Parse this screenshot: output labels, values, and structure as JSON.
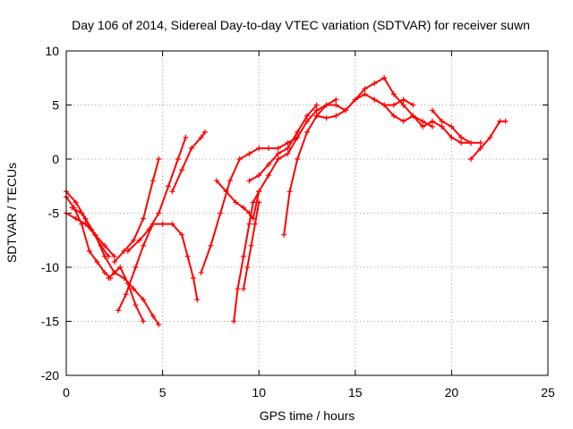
{
  "chart_data": {
    "type": "scatter",
    "title": "Day 106 of 2014, Sidereal Day-to-day VTEC variation (SDTVAR) for receiver suwn",
    "xlabel": "GPS time / hours",
    "ylabel": "SDTVAR / TECUs",
    "xlim": [
      0,
      25
    ],
    "ylim": [
      -20,
      10
    ],
    "xticks": [
      "0",
      "5",
      "10",
      "15",
      "20",
      "25"
    ],
    "yticks": [
      "-20",
      "-15",
      "-10",
      "-5",
      "0",
      "5",
      "10"
    ],
    "grid": true,
    "marker": "+",
    "color": "#ff0000",
    "series": [
      {
        "x": [
          0.0,
          0.5,
          1.0,
          1.5,
          2.0,
          2.5,
          3.0,
          3.5,
          4.0,
          4.5,
          4.8
        ],
        "y": [
          -3.0,
          -4.0,
          -5.5,
          -7.0,
          -9.0,
          -10.5,
          -11.0,
          -12.0,
          -13.0,
          -14.5,
          -15.3
        ]
      },
      {
        "x": [
          0.0,
          0.4,
          0.8,
          1.2,
          1.6,
          2.0,
          2.3
        ],
        "y": [
          -3.5,
          -4.5,
          -6.0,
          -8.5,
          -9.5,
          -10.5,
          -11.0
        ]
      },
      {
        "x": [
          0.0,
          0.5,
          1.0,
          1.5,
          2.0,
          2.5
        ],
        "y": [
          -5.0,
          -5.5,
          -6.0,
          -7.0,
          -8.0,
          -9.0
        ]
      },
      {
        "x": [
          0.3,
          0.8,
          1.3,
          1.8,
          2.2
        ],
        "y": [
          -4.5,
          -5.0,
          -6.5,
          -8.0,
          -9.0
        ]
      },
      {
        "x": [
          2.2,
          2.8,
          3.2,
          3.6,
          4.0
        ],
        "y": [
          -11.0,
          -10.0,
          -11.5,
          -13.5,
          -15.0
        ]
      },
      {
        "x": [
          2.7,
          3.1,
          3.6,
          4.0,
          4.5,
          5.0
        ],
        "y": [
          -14.0,
          -12.5,
          -10.0,
          -8.0,
          -6.0,
          -6.0
        ]
      },
      {
        "x": [
          2.5,
          3.0,
          3.5,
          4.0,
          4.5,
          4.8
        ],
        "y": [
          -9.5,
          -8.5,
          -7.5,
          -5.5,
          -2.0,
          0.0
        ]
      },
      {
        "x": [
          3.2,
          3.8,
          4.3,
          4.8,
          5.3,
          5.8,
          6.2
        ],
        "y": [
          -8.5,
          -7.5,
          -6.5,
          -5.0,
          -2.5,
          0.0,
          2.0
        ]
      },
      {
        "x": [
          5.0,
          5.5,
          6.0,
          6.3,
          6.6,
          6.8
        ],
        "y": [
          -6.0,
          -6.0,
          -7.0,
          -9.0,
          -11.0,
          -13.0
        ]
      },
      {
        "x": [
          5.5,
          6.0,
          6.5,
          7.0,
          7.2
        ],
        "y": [
          -3.0,
          -1.0,
          1.0,
          2.0,
          2.5
        ]
      },
      {
        "x": [
          7.0,
          7.5,
          8.0,
          8.5,
          9.0,
          9.5,
          10.0,
          10.5,
          11.0,
          11.5,
          12.0
        ],
        "y": [
          -10.5,
          -8.0,
          -5.0,
          -2.0,
          0.0,
          0.5,
          1.0,
          1.0,
          1.0,
          1.5,
          2.0
        ]
      },
      {
        "x": [
          7.8,
          8.3,
          8.8,
          9.2,
          9.5,
          9.7,
          10.0
        ],
        "y": [
          -2.0,
          -3.0,
          -4.0,
          -4.5,
          -5.0,
          -5.5,
          -3.0
        ]
      },
      {
        "x": [
          8.7,
          8.9,
          9.2,
          9.5,
          9.7,
          10.0,
          10.5,
          11.0,
          11.5,
          12.0
        ],
        "y": [
          -15.0,
          -12.0,
          -9.0,
          -6.0,
          -4.0,
          -3.0,
          -1.5,
          0.0,
          0.5,
          2.0
        ]
      },
      {
        "x": [
          9.2,
          9.4,
          9.6,
          9.8,
          10.0
        ],
        "y": [
          -12.0,
          -10.0,
          -8.0,
          -6.0,
          -4.0
        ]
      },
      {
        "x": [
          9.5,
          10.0,
          10.5,
          11.0,
          11.5,
          12.0,
          12.5,
          13.0
        ],
        "y": [
          -2.0,
          -1.5,
          -0.5,
          0.5,
          1.0,
          2.5,
          4.0,
          5.0
        ]
      },
      {
        "x": [
          11.3,
          11.6,
          12.0,
          12.5,
          13.0,
          13.5,
          14.0
        ],
        "y": [
          -7.0,
          -3.0,
          0.0,
          2.5,
          4.0,
          5.0,
          5.5
        ]
      },
      {
        "x": [
          12.0,
          12.5,
          13.0,
          13.5,
          14.0,
          14.5,
          15.0,
          15.5,
          16.0,
          16.5,
          17.0,
          17.5,
          18.0
        ],
        "y": [
          2.0,
          3.5,
          4.5,
          5.0,
          5.0,
          4.5,
          5.5,
          6.0,
          5.5,
          5.0,
          5.0,
          5.5,
          5.0
        ]
      },
      {
        "x": [
          13.0,
          13.5,
          14.0,
          14.5,
          15.0,
          15.5,
          16.0,
          16.5
        ],
        "y": [
          4.0,
          3.8,
          4.0,
          4.5,
          5.5,
          6.5,
          7.0,
          7.5
        ]
      },
      {
        "x": [
          16.5,
          17.0,
          17.5,
          18.0,
          18.5,
          19.0
        ],
        "y": [
          7.5,
          6.0,
          5.0,
          4.0,
          3.5,
          3.0
        ]
      },
      {
        "x": [
          16.0,
          16.5,
          17.0,
          17.5,
          18.0,
          18.5,
          19.0,
          19.5,
          20.0,
          20.5,
          21.0,
          21.5
        ],
        "y": [
          5.5,
          5.0,
          4.0,
          3.5,
          4.0,
          3.0,
          3.5,
          3.0,
          2.0,
          1.5,
          1.5,
          1.5
        ]
      },
      {
        "x": [
          19.0,
          19.5,
          20.0,
          20.5,
          21.0
        ],
        "y": [
          4.5,
          3.5,
          3.0,
          2.0,
          1.5
        ]
      },
      {
        "x": [
          21.0,
          21.5,
          22.0,
          22.5,
          22.8
        ],
        "y": [
          0.0,
          1.0,
          2.0,
          3.5,
          3.5
        ]
      }
    ]
  }
}
